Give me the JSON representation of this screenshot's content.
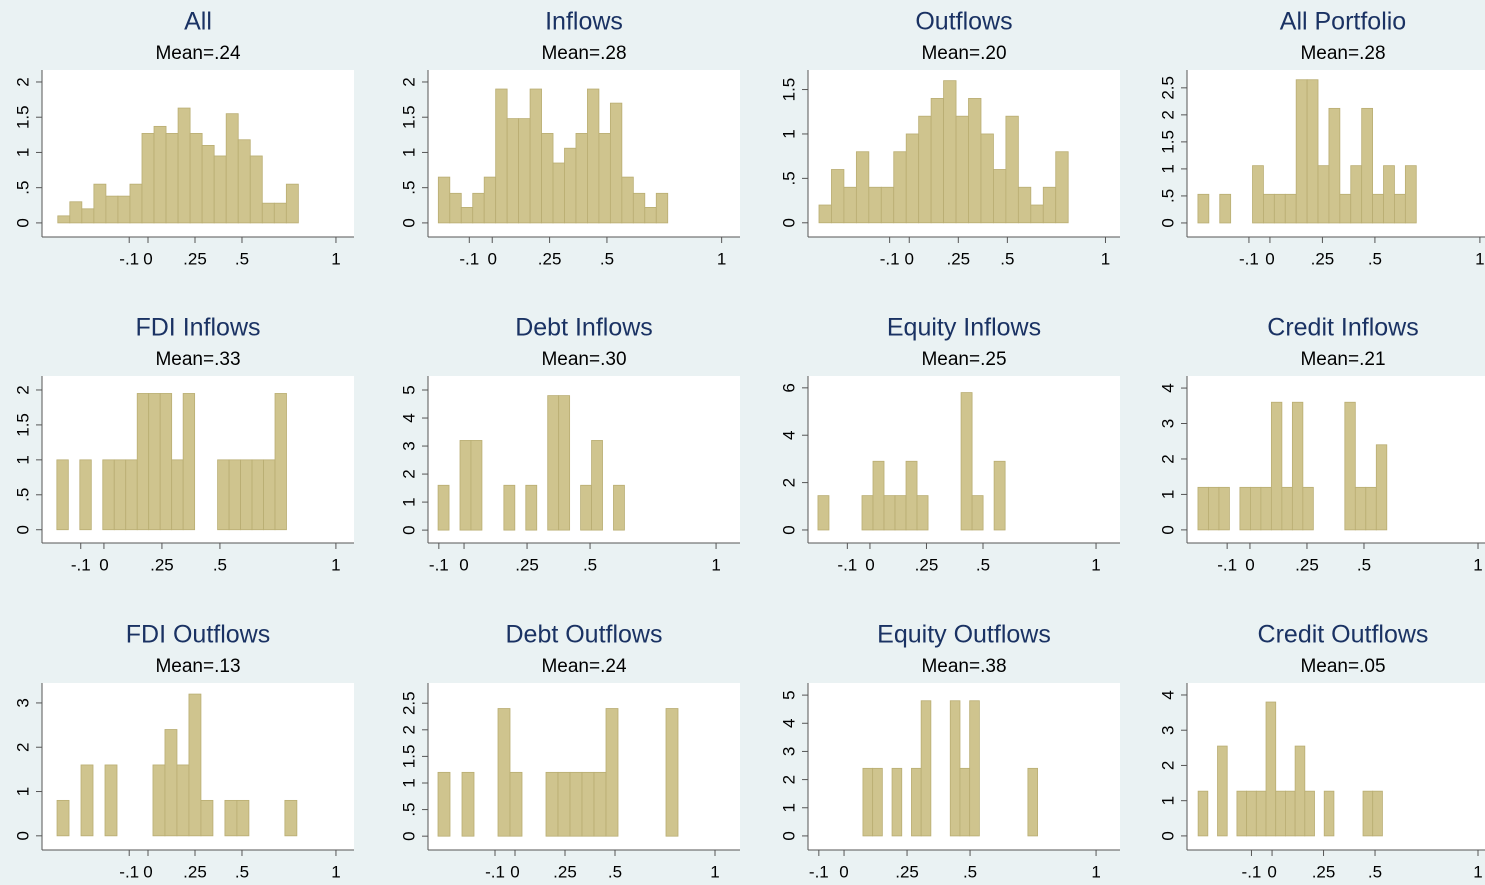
{
  "chart_data": [
    {
      "type": "histogram",
      "title": "All",
      "subtitle": "Mean=.24",
      "color": "#cfc48e",
      "bins": [
        -0.48,
        -0.416,
        -0.352,
        -0.288,
        -0.224,
        -0.16,
        -0.096,
        -0.032,
        0.032,
        0.096,
        0.16,
        0.224,
        0.288,
        0.352,
        0.416,
        0.48,
        0.544,
        0.608,
        0.672,
        0.736,
        0.8
      ],
      "values": [
        0.1,
        0.3,
        0.2,
        0.55,
        0.38,
        0.38,
        0.55,
        1.27,
        1.37,
        1.27,
        1.63,
        1.27,
        1.1,
        0.95,
        1.55,
        1.18,
        0.95,
        0.28,
        0.28,
        0.55
      ],
      "xlim": [
        -0.564,
        1.096
      ],
      "xticks": [
        {
          "value": -0.1,
          "label": "-.1"
        },
        0,
        {
          "value": 0.25,
          "label": ".25"
        },
        {
          "value": 0.5,
          "label": ".5"
        },
        1
      ],
      "ylim": [
        -0.2,
        2.17
      ],
      "yticks": [
        0,
        {
          "value": 0.5,
          "label": ".5"
        },
        1,
        {
          "value": 1.5,
          "label": "1.5"
        },
        2
      ]
    },
    {
      "type": "histogram",
      "title": "Inflows",
      "subtitle": "Mean=.28",
      "color": "#cfc48e",
      "bins": [
        -0.235,
        -0.185,
        -0.135,
        -0.085,
        -0.035,
        0.015,
        0.065,
        0.115,
        0.165,
        0.215,
        0.265,
        0.315,
        0.365,
        0.415,
        0.465,
        0.515,
        0.565,
        0.615,
        0.665,
        0.715,
        0.765
      ],
      "values": [
        0.65,
        0.42,
        0.22,
        0.42,
        0.65,
        1.9,
        1.48,
        1.48,
        1.9,
        1.27,
        0.85,
        1.06,
        1.27,
        1.9,
        1.27,
        1.7,
        0.65,
        0.42,
        0.22,
        0.42
      ],
      "xlim": [
        -0.28,
        1.08
      ],
      "xticks": [
        {
          "value": -0.1,
          "label": "-.1"
        },
        0,
        {
          "value": 0.25,
          "label": ".25"
        },
        {
          "value": 0.5,
          "label": ".5"
        },
        1
      ],
      "ylim": [
        -0.2,
        2.17
      ],
      "yticks": [
        0,
        {
          "value": 0.5,
          "label": ".5"
        },
        1,
        {
          "value": 1.5,
          "label": "1.5"
        },
        2
      ]
    },
    {
      "type": "histogram",
      "title": "Outflows",
      "subtitle": "Mean=.20",
      "color": "#cfc48e",
      "bins": [
        -0.46,
        -0.3965,
        -0.333,
        -0.2695,
        -0.206,
        -0.1425,
        -0.079,
        -0.0155,
        0.048,
        0.1115,
        0.175,
        0.2385,
        0.302,
        0.3655,
        0.429,
        0.4925,
        0.556,
        0.6195,
        0.683,
        0.7465,
        0.81
      ],
      "values": [
        0.2,
        0.6,
        0.4,
        0.8,
        0.4,
        0.4,
        0.8,
        1.0,
        1.2,
        1.4,
        1.6,
        1.2,
        1.4,
        1.0,
        0.6,
        1.2,
        0.4,
        0.2,
        0.4,
        0.8
      ],
      "xlim": [
        -0.516,
        1.074
      ],
      "xticks": [
        {
          "value": -0.1,
          "label": "-.1"
        },
        0,
        {
          "value": 0.25,
          "label": ".25"
        },
        {
          "value": 0.5,
          "label": ".5"
        },
        1
      ],
      "ylim": [
        -0.16,
        1.72
      ],
      "yticks": [
        0,
        {
          "value": 0.5,
          "label": ".5"
        },
        1,
        {
          "value": 1.5,
          "label": "1.5"
        }
      ]
    },
    {
      "type": "histogram",
      "title": "All Portfolio",
      "subtitle": "Mean=.28",
      "color": "#cfc48e",
      "bins": [
        -0.343,
        -0.291,
        -0.239,
        -0.187,
        -0.135,
        -0.083,
        -0.031,
        0.021,
        0.073,
        0.125,
        0.177,
        0.229,
        0.281,
        0.333,
        0.385,
        0.437,
        0.489,
        0.541,
        0.593,
        0.645,
        0.697
      ],
      "values": [
        0.53,
        0,
        0.53,
        0,
        0,
        1.06,
        0.53,
        0.53,
        0.53,
        2.65,
        2.65,
        1.06,
        2.12,
        0.53,
        1.06,
        2.12,
        0.53,
        1.06,
        0.53,
        1.06
      ],
      "xlim": [
        -0.395,
        1.091
      ],
      "xticks": [
        {
          "value": -0.1,
          "label": "-.1"
        },
        0,
        {
          "value": 0.25,
          "label": ".25"
        },
        {
          "value": 0.5,
          "label": ".5"
        },
        1
      ],
      "ylim": [
        -0.26,
        2.83
      ],
      "yticks": [
        0,
        {
          "value": 0.5,
          "label": ".5"
        },
        1,
        {
          "value": 1.5,
          "label": "1.5"
        },
        2,
        {
          "value": 2.5,
          "label": "2.5"
        }
      ]
    },
    {
      "type": "histogram",
      "title": "FDI Inflows",
      "subtitle": "Mean=.33",
      "color": "#cfc48e",
      "bins": [
        -0.203,
        -0.1535,
        -0.104,
        -0.0545,
        -0.005,
        0.0445,
        0.094,
        0.1435,
        0.193,
        0.2425,
        0.292,
        0.3415,
        0.391,
        0.4405,
        0.49,
        0.5395,
        0.589,
        0.6385,
        0.688,
        0.7375,
        0.787
      ],
      "values": [
        1,
        0,
        1,
        0,
        1,
        1,
        1,
        1.95,
        1.95,
        1.95,
        1,
        1.95,
        0,
        0,
        1,
        1,
        1,
        1,
        1,
        1.95
      ],
      "xlim": [
        -0.267,
        1.078
      ],
      "xticks": [
        {
          "value": -0.1,
          "label": "-.1"
        },
        0,
        {
          "value": 0.25,
          "label": ".25"
        },
        {
          "value": 0.5,
          "label": ".5"
        },
        1
      ],
      "ylim": [
        -0.19,
        2.2
      ],
      "yticks": [
        0,
        {
          "value": 0.5,
          "label": ".5"
        },
        1,
        {
          "value": 1.5,
          "label": "1.5"
        },
        2
      ]
    },
    {
      "type": "histogram",
      "title": "Debt Inflows",
      "subtitle": "Mean=.30",
      "color": "#cfc48e",
      "bins": [
        -0.103,
        -0.0595,
        -0.016,
        0.0275,
        0.071,
        0.1145,
        0.158,
        0.2015,
        0.245,
        0.2885,
        0.332,
        0.3755,
        0.419,
        0.4625,
        0.506,
        0.5495,
        0.593,
        0.6365
      ],
      "values": [
        1.6,
        0,
        3.2,
        3.2,
        0,
        0,
        1.6,
        0,
        1.6,
        0,
        4.8,
        4.8,
        0,
        1.6,
        3.2,
        0,
        1.6
      ],
      "xlim": [
        -0.143,
        1.095
      ],
      "xticks": [
        {
          "value": -0.1,
          "label": "-.1"
        },
        0,
        {
          "value": 0.25,
          "label": ".25"
        },
        {
          "value": 0.5,
          "label": ".5"
        },
        1
      ],
      "ylim": [
        -0.46,
        5.5
      ],
      "yticks": [
        0,
        1,
        2,
        3,
        4,
        5
      ]
    },
    {
      "type": "histogram",
      "title": "Equity Inflows",
      "subtitle": "Mean=.25",
      "color": "#cfc48e",
      "bins": [
        -0.23,
        -0.1813,
        -0.1326,
        -0.0839,
        -0.0352,
        0.0135,
        0.0622,
        0.1109,
        0.1596,
        0.2083,
        0.257,
        0.3057,
        0.3544,
        0.4031,
        0.4518,
        0.5005,
        0.5492,
        0.5979
      ],
      "values": [
        1.45,
        0,
        0,
        0,
        1.45,
        2.9,
        1.45,
        1.45,
        2.9,
        1.45,
        0,
        0,
        0,
        5.8,
        1.45,
        0,
        2.9
      ],
      "xlim": [
        -0.274,
        1.106
      ],
      "xticks": [
        {
          "value": -0.1,
          "label": "-.1"
        },
        0,
        {
          "value": 0.25,
          "label": ".25"
        },
        {
          "value": 0.5,
          "label": ".5"
        },
        1
      ],
      "ylim": [
        -0.55,
        6.5
      ],
      "yticks": [
        0,
        2,
        4,
        6
      ]
    },
    {
      "type": "histogram",
      "title": "Credit Inflows",
      "subtitle": "Mean=.21",
      "color": "#cfc48e",
      "bins": [
        -0.228,
        -0.182,
        -0.136,
        -0.09,
        -0.044,
        0.002,
        0.048,
        0.094,
        0.14,
        0.186,
        0.232,
        0.278,
        0.324,
        0.37,
        0.416,
        0.462,
        0.508,
        0.554,
        0.6
      ],
      "values": [
        1.2,
        1.2,
        1.2,
        0,
        1.2,
        1.2,
        1.2,
        3.6,
        1.2,
        3.6,
        1.2,
        0,
        0,
        0,
        3.6,
        1.2,
        1.2,
        2.4
      ],
      "xlim": [
        -0.276,
        1.092
      ],
      "xticks": [
        {
          "value": -0.1,
          "label": "-.1"
        },
        0,
        {
          "value": 0.25,
          "label": ".25"
        },
        {
          "value": 0.5,
          "label": ".5"
        },
        1
      ],
      "ylim": [
        -0.37,
        4.34
      ],
      "yticks": [
        0,
        1,
        2,
        3,
        4
      ]
    },
    {
      "type": "histogram",
      "title": "FDI Outflows",
      "subtitle": "Mean=.13",
      "color": "#cfc48e",
      "bins": [
        -0.484,
        -0.4202,
        -0.3564,
        -0.2926,
        -0.2288,
        -0.165,
        -0.1012,
        -0.0374,
        0.0264,
        0.0902,
        0.154,
        0.2178,
        0.2816,
        0.3454,
        0.4092,
        0.473,
        0.5368,
        0.6006,
        0.6644,
        0.7282,
        0.792
      ],
      "values": [
        0.8,
        0,
        1.6,
        0,
        1.6,
        0,
        0,
        0,
        1.6,
        2.4,
        1.6,
        3.2,
        0.8,
        0,
        0.8,
        0.8,
        0,
        0,
        0,
        0.8
      ],
      "xlim": [
        -0.564,
        1.096
      ],
      "xticks": [
        {
          "value": -0.1,
          "label": "-.1"
        },
        0,
        {
          "value": 0.25,
          "label": ".25"
        },
        {
          "value": 0.5,
          "label": ".5"
        },
        1
      ],
      "ylim": [
        -0.32,
        3.45
      ],
      "yticks": [
        0,
        1,
        2,
        3
      ]
    },
    {
      "type": "histogram",
      "title": "Debt Outflows",
      "subtitle": "Mean=.24",
      "color": "#cfc48e",
      "bins": [
        -0.385,
        -0.325,
        -0.265,
        -0.205,
        -0.145,
        -0.085,
        -0.025,
        0.035,
        0.095,
        0.155,
        0.215,
        0.275,
        0.335,
        0.395,
        0.455,
        0.515,
        0.575,
        0.635,
        0.695,
        0.755,
        0.815
      ],
      "values": [
        1.2,
        0,
        1.2,
        0,
        0,
        2.4,
        1.2,
        0,
        0,
        1.2,
        1.2,
        1.2,
        1.2,
        1.2,
        2.4,
        0,
        0,
        0,
        0,
        2.4
      ],
      "xlim": [
        -0.435,
        1.125
      ],
      "xticks": [
        {
          "value": -0.1,
          "label": "-.1"
        },
        0,
        {
          "value": 0.25,
          "label": ".25"
        },
        {
          "value": 0.5,
          "label": ".5"
        },
        1
      ],
      "ylim": [
        -0.26,
        2.88
      ],
      "yticks": [
        0,
        {
          "value": 0.5,
          "label": ".5"
        },
        1,
        {
          "value": 1.5,
          "label": "1.5"
        },
        2,
        {
          "value": 2.5,
          "label": "2.5"
        }
      ]
    },
    {
      "type": "histogram",
      "title": "Equity Outflows",
      "subtitle": "Mean=.38",
      "color": "#cfc48e",
      "bins": [
        0.075,
        0.1135,
        0.152,
        0.1905,
        0.229,
        0.2675,
        0.306,
        0.3445,
        0.383,
        0.4215,
        0.46,
        0.4985,
        0.537,
        0.5755,
        0.614,
        0.6525,
        0.691,
        0.7295,
        0.768
      ],
      "values": [
        2.4,
        2.4,
        0,
        2.4,
        0,
        2.4,
        4.8,
        0,
        0,
        4.8,
        2.4,
        4.8,
        0,
        0,
        0,
        0,
        0,
        2.4
      ],
      "xlim": [
        -0.143,
        1.095
      ],
      "xticks": [
        {
          "value": -0.1,
          "label": "-.1"
        },
        0,
        {
          "value": 0.25,
          "label": ".25"
        },
        {
          "value": 0.5,
          "label": ".5"
        },
        1
      ],
      "ylim": [
        -0.5,
        5.43
      ],
      "yticks": [
        0,
        1,
        2,
        3,
        4,
        5
      ]
    },
    {
      "type": "histogram",
      "title": "Credit Outflows",
      "subtitle": "Mean=.05",
      "color": "#cfc48e",
      "bins": [
        -0.359,
        -0.3119,
        -0.2648,
        -0.2177,
        -0.1706,
        -0.1235,
        -0.0764,
        -0.0293,
        0.0178,
        0.0649,
        0.112,
        0.1591,
        0.2062,
        0.2533,
        0.3004,
        0.3475,
        0.3946,
        0.4417,
        0.4888,
        0.5359
      ],
      "values": [
        1.27,
        0,
        2.55,
        0,
        1.27,
        1.27,
        1.27,
        3.8,
        1.27,
        1.27,
        2.55,
        1.27,
        0,
        1.27,
        0,
        0,
        0,
        1.27,
        1.27
      ],
      "xlim": [
        -0.413,
        1.102
      ],
      "xticks": [
        {
          "value": -0.1,
          "label": "-.1"
        },
        0,
        {
          "value": 0.25,
          "label": ".25"
        },
        {
          "value": 0.5,
          "label": ".5"
        },
        1
      ],
      "ylim": [
        -0.4,
        4.34
      ],
      "yticks": [
        0,
        1,
        2,
        3,
        4
      ]
    }
  ]
}
